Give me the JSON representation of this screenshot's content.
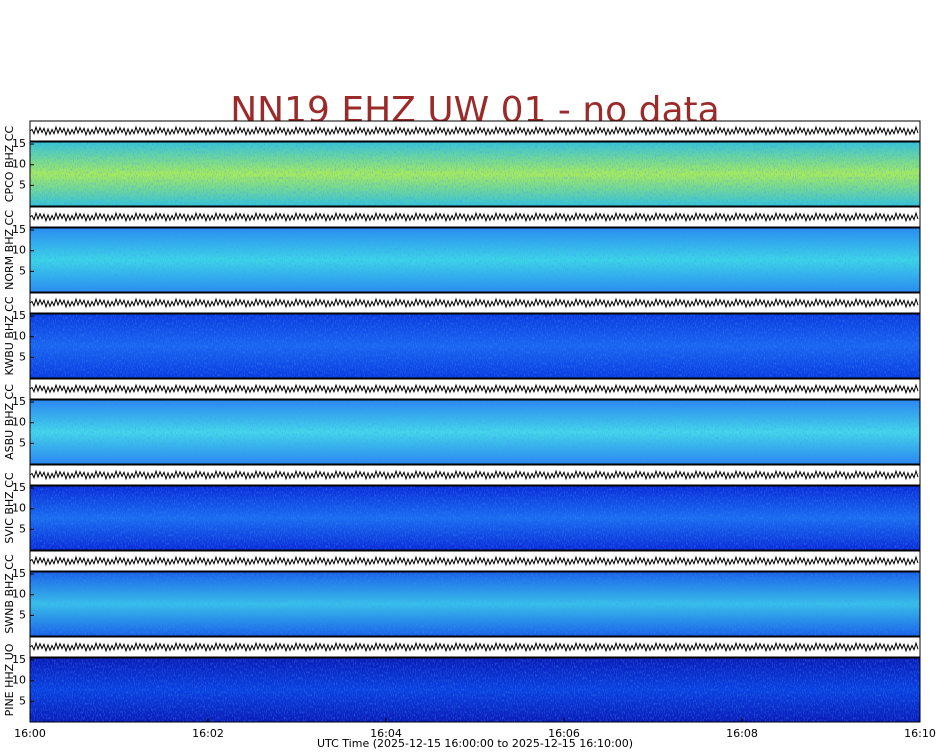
{
  "chart_data": {
    "type": "spectrogram",
    "title": "NN19 EHZ UW 01 - no data",
    "x_label": "UTC Time (2025-12-15 16:00:00 to 2025-12-15 16:10:00)",
    "xlim": [
      0,
      10
    ],
    "xticks": [
      {
        "value": 0,
        "label": "16:00"
      },
      {
        "value": 2,
        "label": "16:02"
      },
      {
        "value": 4,
        "label": "16:04"
      },
      {
        "value": 6,
        "label": "16:06"
      },
      {
        "value": 8,
        "label": "16:08"
      },
      {
        "value": 10,
        "label": "16:10"
      }
    ],
    "ylim": [
      0,
      15.5
    ],
    "yticks": [
      5,
      10,
      15
    ],
    "panels": [
      {
        "label": "CPCO BHZ CC",
        "colors": [
          "#36c4d8",
          "#a8ec5a"
        ]
      },
      {
        "label": "NORM BHZ CC",
        "colors": [
          "#2a8cf0",
          "#3cd6e6"
        ]
      },
      {
        "label": "KWBU BHZ CC",
        "colors": [
          "#0a3ae0",
          "#1a64f0"
        ]
      },
      {
        "label": "ASBU BHZ CC",
        "colors": [
          "#2a86f0",
          "#44d8e8"
        ]
      },
      {
        "label": "SVIC BHZ CC",
        "colors": [
          "#0a2ad8",
          "#1a6cf0"
        ]
      },
      {
        "label": "SWNB BHZ CC",
        "colors": [
          "#1a60e8",
          "#38c0e8"
        ]
      },
      {
        "label": "PINE HHZ UO",
        "colors": [
          "#0a1ab8",
          "#0a40e0"
        ]
      }
    ]
  }
}
